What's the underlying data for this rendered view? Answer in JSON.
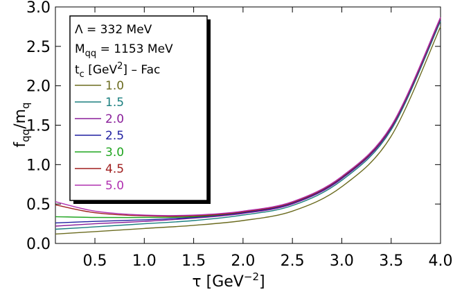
{
  "chart_data": {
    "type": "line",
    "title": "",
    "xlabel": "τ [GeV⁻²]",
    "ylabel": "f_qq/m_q",
    "xlim": [
      0.1,
      4.0
    ],
    "ylim": [
      0.0,
      3.0
    ],
    "xticks": [
      "0.5",
      "1.0",
      "1.5",
      "2.0",
      "2.5",
      "3.0",
      "3.5",
      "4.0"
    ],
    "yticks": [
      "0.0",
      "0.5",
      "1.0",
      "1.5",
      "2.0",
      "2.5",
      "3.0"
    ],
    "legend": {
      "line1": "Λ = 332 MeV",
      "line2": "M_qq = 1153 MeV",
      "header": "t_c [GeV²] – Fac"
    },
    "series": [
      {
        "name": "1.0",
        "color": "#6b6b1f",
        "points": [
          [
            0.1,
            0.12
          ],
          [
            0.5,
            0.15
          ],
          [
            1.0,
            0.19
          ],
          [
            1.5,
            0.23
          ],
          [
            2.0,
            0.29
          ],
          [
            2.5,
            0.41
          ],
          [
            3.0,
            0.72
          ],
          [
            3.5,
            1.36
          ],
          [
            4.0,
            2.75
          ]
        ]
      },
      {
        "name": "1.5",
        "color": "#1a7f7f",
        "points": [
          [
            0.1,
            0.18
          ],
          [
            0.5,
            0.21
          ],
          [
            1.0,
            0.25
          ],
          [
            1.5,
            0.29
          ],
          [
            2.0,
            0.36
          ],
          [
            2.5,
            0.48
          ],
          [
            3.0,
            0.8
          ],
          [
            3.5,
            1.44
          ],
          [
            4.0,
            2.82
          ]
        ]
      },
      {
        "name": "2.0",
        "color": "#8a1f9a",
        "points": [
          [
            0.1,
            0.22
          ],
          [
            0.5,
            0.25
          ],
          [
            1.0,
            0.28
          ],
          [
            1.5,
            0.32
          ],
          [
            2.0,
            0.38
          ],
          [
            2.5,
            0.5
          ],
          [
            3.0,
            0.82
          ],
          [
            3.5,
            1.46
          ],
          [
            4.0,
            2.84
          ]
        ]
      },
      {
        "name": "2.5",
        "color": "#1f1fa0",
        "points": [
          [
            0.1,
            0.26
          ],
          [
            0.5,
            0.28
          ],
          [
            1.0,
            0.3
          ],
          [
            1.5,
            0.33
          ],
          [
            2.0,
            0.39
          ],
          [
            2.5,
            0.51
          ],
          [
            3.0,
            0.83
          ],
          [
            3.5,
            1.47
          ],
          [
            4.0,
            2.85
          ]
        ]
      },
      {
        "name": "3.0",
        "color": "#1fa51f",
        "points": [
          [
            0.1,
            0.34
          ],
          [
            0.5,
            0.33
          ],
          [
            1.0,
            0.33
          ],
          [
            1.5,
            0.34
          ],
          [
            2.0,
            0.4
          ],
          [
            2.5,
            0.52
          ],
          [
            3.0,
            0.84
          ],
          [
            3.5,
            1.48
          ],
          [
            4.0,
            2.86
          ]
        ]
      },
      {
        "name": "4.5",
        "color": "#a01f1f",
        "points": [
          [
            0.1,
            0.49
          ],
          [
            0.5,
            0.39
          ],
          [
            1.0,
            0.35
          ],
          [
            1.5,
            0.35
          ],
          [
            2.0,
            0.4
          ],
          [
            2.5,
            0.52
          ],
          [
            3.0,
            0.84
          ],
          [
            3.5,
            1.48
          ],
          [
            4.0,
            2.86
          ]
        ]
      },
      {
        "name": "5.0",
        "color": "#b030b0",
        "points": [
          [
            0.1,
            0.53
          ],
          [
            0.5,
            0.41
          ],
          [
            1.0,
            0.36
          ],
          [
            1.5,
            0.36
          ],
          [
            2.0,
            0.41
          ],
          [
            2.5,
            0.53
          ],
          [
            3.0,
            0.85
          ],
          [
            3.5,
            1.49
          ],
          [
            4.0,
            2.87
          ]
        ]
      }
    ]
  }
}
